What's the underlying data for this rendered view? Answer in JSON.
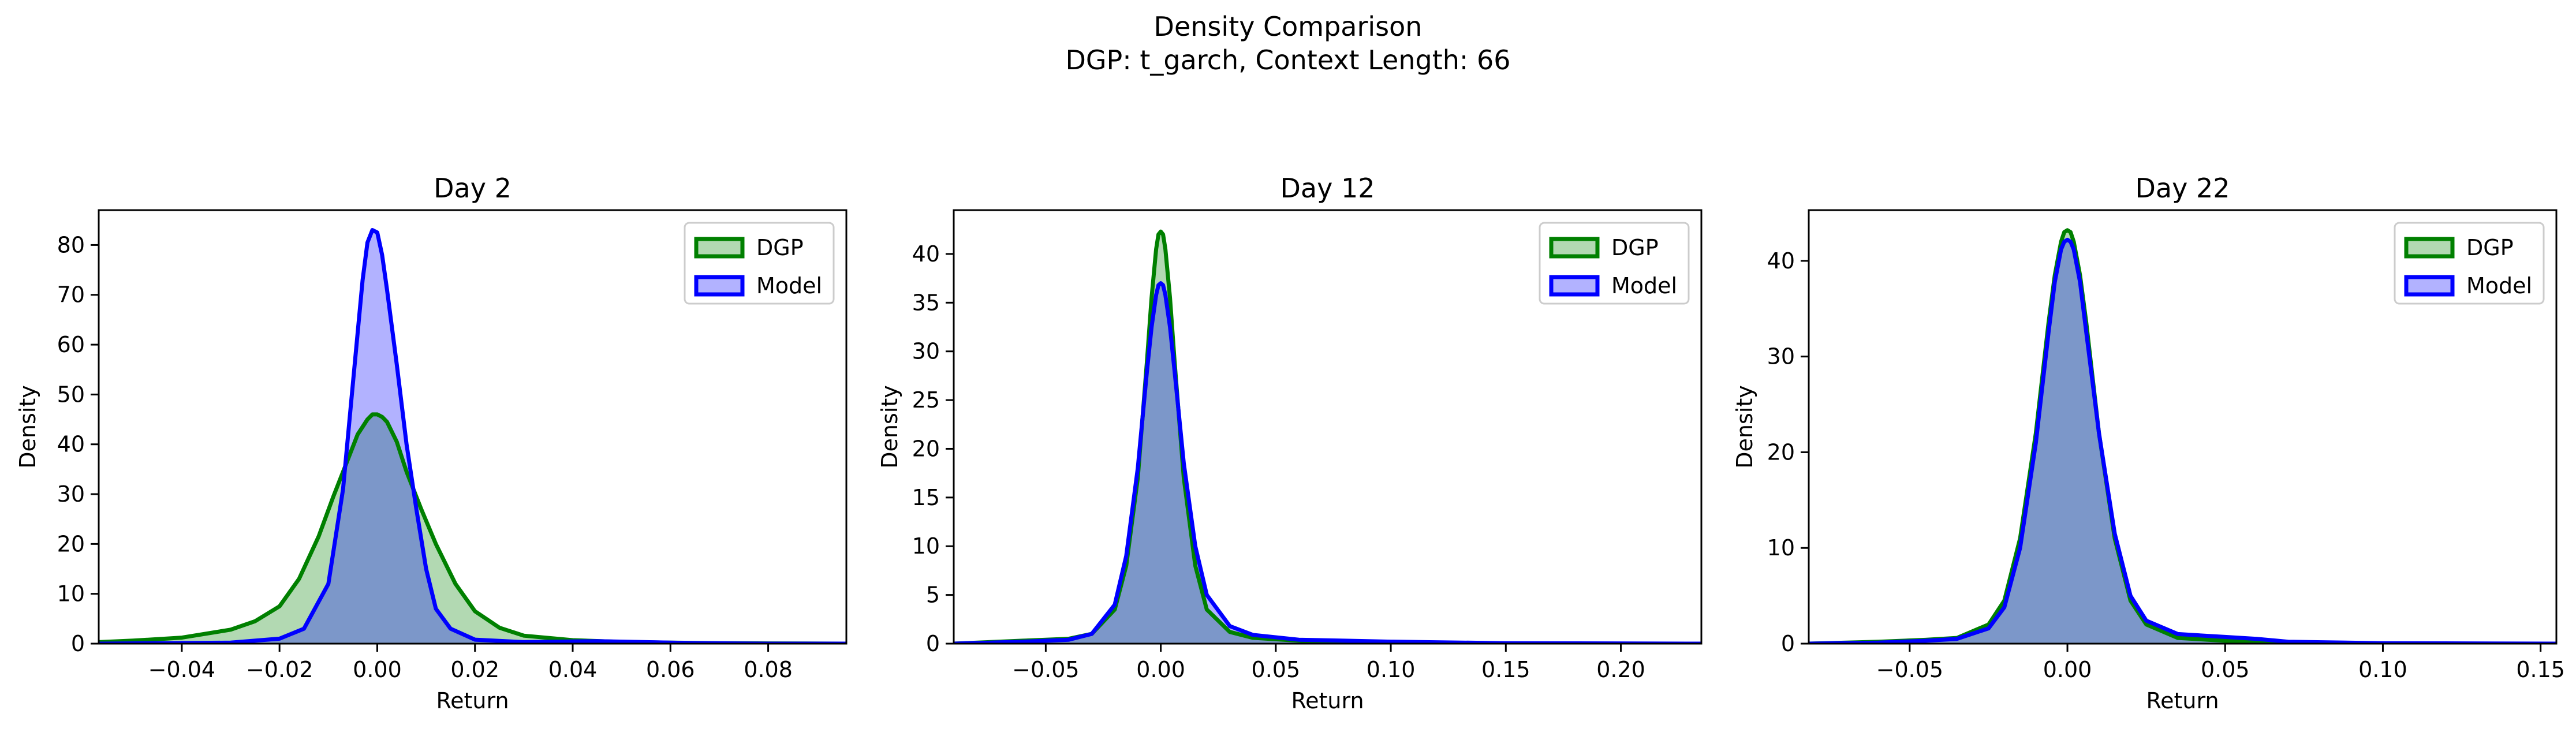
{
  "figure": {
    "title_line1": "Density Comparison",
    "title_line2": "DGP: t_garch, Context Length: 66"
  },
  "colors": {
    "dgp": "#008000",
    "model": "#0000ff"
  },
  "legend": {
    "dgp": "DGP",
    "model": "Model",
    "placement": "upper-right"
  },
  "chart_data": [
    {
      "type": "area",
      "title": "Day 2",
      "xlabel": "Return",
      "ylabel": "Density",
      "xlim": [
        -0.057,
        0.096
      ],
      "ylim": [
        0,
        87
      ],
      "xticks": [
        -0.04,
        -0.02,
        0.0,
        0.02,
        0.04,
        0.06,
        0.08
      ],
      "xtick_labels": [
        "−0.04",
        "−0.02",
        "0.00",
        "0.02",
        "0.04",
        "0.06",
        "0.08"
      ],
      "yticks": [
        0,
        10,
        20,
        30,
        40,
        50,
        60,
        70,
        80
      ],
      "ytick_labels": [
        "0",
        "10",
        "20",
        "30",
        "40",
        "50",
        "60",
        "70",
        "80"
      ],
      "series": [
        {
          "name": "DGP",
          "x": [
            -0.057,
            -0.05,
            -0.04,
            -0.03,
            -0.025,
            -0.02,
            -0.016,
            -0.012,
            -0.009,
            -0.006,
            -0.004,
            -0.002,
            -0.001,
            0.0,
            0.001,
            0.002,
            0.004,
            0.006,
            0.009,
            0.012,
            0.016,
            0.02,
            0.025,
            0.03,
            0.04,
            0.05,
            0.06,
            0.07,
            0.08,
            0.096
          ],
          "y": [
            0.3,
            0.6,
            1.2,
            2.8,
            4.5,
            7.5,
            13.0,
            21.5,
            29.5,
            37.0,
            42.0,
            45.0,
            46.0,
            46.0,
            45.5,
            44.5,
            40.5,
            34.5,
            27.0,
            20.0,
            12.0,
            6.5,
            3.2,
            1.6,
            0.7,
            0.35,
            0.2,
            0.1,
            0.05,
            0.0
          ]
        },
        {
          "name": "Model",
          "x": [
            -0.057,
            -0.03,
            -0.02,
            -0.015,
            -0.01,
            -0.007,
            -0.005,
            -0.003,
            -0.002,
            -0.001,
            0.0,
            0.001,
            0.002,
            0.004,
            0.006,
            0.008,
            0.01,
            0.012,
            0.015,
            0.02,
            0.03,
            0.045,
            0.055,
            0.065,
            0.08,
            0.096
          ],
          "y": [
            0.0,
            0.2,
            1.0,
            3.0,
            12.0,
            31.0,
            52.0,
            73.0,
            80.5,
            83.0,
            82.5,
            78.0,
            71.0,
            56.0,
            40.0,
            27.0,
            15.0,
            7.0,
            3.0,
            0.8,
            0.3,
            0.5,
            0.3,
            0.1,
            0.0,
            0.0
          ]
        }
      ]
    },
    {
      "type": "area",
      "title": "Day 12",
      "xlabel": "Return",
      "ylabel": "Density",
      "xlim": [
        -0.09,
        0.235
      ],
      "ylim": [
        0,
        44.5
      ],
      "xticks": [
        -0.05,
        0.0,
        0.05,
        0.1,
        0.15,
        0.2
      ],
      "xtick_labels": [
        "−0.05",
        "0.00",
        "0.05",
        "0.10",
        "0.15",
        "0.20"
      ],
      "yticks": [
        0,
        5,
        10,
        15,
        20,
        25,
        30,
        35,
        40
      ],
      "ytick_labels": [
        "0",
        "5",
        "10",
        "15",
        "20",
        "25",
        "30",
        "35",
        "40"
      ],
      "series": [
        {
          "name": "DGP",
          "x": [
            -0.09,
            -0.06,
            -0.04,
            -0.03,
            -0.02,
            -0.015,
            -0.01,
            -0.006,
            -0.004,
            -0.002,
            -0.001,
            0.0,
            0.001,
            0.002,
            0.004,
            0.006,
            0.01,
            0.015,
            0.02,
            0.03,
            0.04,
            0.06,
            0.08,
            0.1,
            0.15,
            0.235
          ],
          "y": [
            0.0,
            0.3,
            0.5,
            1.0,
            3.5,
            8.0,
            17.0,
            29.0,
            35.5,
            40.5,
            42.0,
            42.3,
            42.0,
            40.5,
            35.5,
            29.0,
            17.0,
            8.0,
            3.5,
            1.2,
            0.6,
            0.3,
            0.2,
            0.1,
            0.0,
            0.0
          ]
        },
        {
          "name": "Model",
          "x": [
            -0.09,
            -0.06,
            -0.04,
            -0.03,
            -0.02,
            -0.015,
            -0.01,
            -0.006,
            -0.004,
            -0.002,
            -0.001,
            0.0,
            0.001,
            0.002,
            0.004,
            0.006,
            0.01,
            0.015,
            0.02,
            0.03,
            0.04,
            0.06,
            0.08,
            0.1,
            0.15,
            0.235
          ],
          "y": [
            0.0,
            0.2,
            0.4,
            1.0,
            4.0,
            9.0,
            18.0,
            28.0,
            32.5,
            35.8,
            36.8,
            37.0,
            36.8,
            35.8,
            32.5,
            28.0,
            18.5,
            10.0,
            5.0,
            1.8,
            0.9,
            0.4,
            0.3,
            0.2,
            0.05,
            0.0
          ]
        }
      ]
    },
    {
      "type": "area",
      "title": "Day 22",
      "xlabel": "Return",
      "ylabel": "Density",
      "xlim": [
        -0.082,
        0.155
      ],
      "ylim": [
        0,
        45.3
      ],
      "xticks": [
        -0.05,
        0.0,
        0.05,
        0.1,
        0.15
      ],
      "xtick_labels": [
        "−0.05",
        "0.00",
        "0.05",
        "0.10",
        "0.15"
      ],
      "yticks": [
        0,
        10,
        20,
        30,
        40
      ],
      "ytick_labels": [
        "0",
        "10",
        "20",
        "30",
        "40"
      ],
      "series": [
        {
          "name": "DGP",
          "x": [
            -0.082,
            -0.06,
            -0.045,
            -0.035,
            -0.025,
            -0.02,
            -0.015,
            -0.01,
            -0.006,
            -0.004,
            -0.002,
            -0.001,
            0.0,
            0.001,
            0.002,
            0.004,
            0.006,
            0.01,
            0.015,
            0.02,
            0.025,
            0.035,
            0.05,
            0.07,
            0.1,
            0.155
          ],
          "y": [
            0.0,
            0.2,
            0.4,
            0.6,
            2.0,
            4.5,
            11.0,
            22.0,
            33.5,
            38.5,
            42.0,
            43.0,
            43.2,
            43.0,
            42.0,
            38.5,
            33.5,
            22.0,
            11.0,
            4.5,
            2.0,
            0.6,
            0.3,
            0.1,
            0.0,
            0.0
          ]
        },
        {
          "name": "Model",
          "x": [
            -0.082,
            -0.06,
            -0.045,
            -0.035,
            -0.025,
            -0.02,
            -0.015,
            -0.01,
            -0.006,
            -0.004,
            -0.002,
            -0.001,
            0.0,
            0.001,
            0.002,
            0.004,
            0.006,
            0.01,
            0.015,
            0.02,
            0.025,
            0.035,
            0.05,
            0.06,
            0.07,
            0.1,
            0.155
          ],
          "y": [
            0.0,
            0.1,
            0.3,
            0.5,
            1.6,
            3.8,
            10.0,
            21.0,
            32.5,
            37.8,
            41.2,
            42.0,
            42.2,
            42.0,
            41.2,
            37.8,
            32.5,
            22.0,
            11.5,
            5.0,
            2.4,
            1.0,
            0.7,
            0.5,
            0.2,
            0.05,
            0.0
          ]
        }
      ]
    }
  ]
}
